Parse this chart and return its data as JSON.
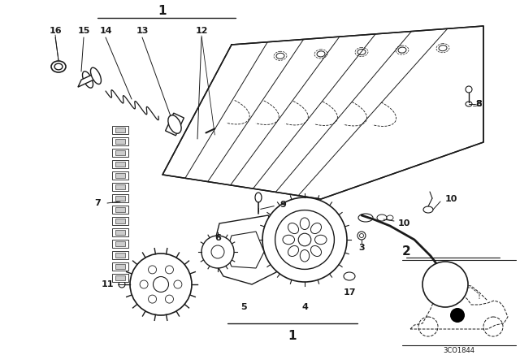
{
  "bg_color": "#ffffff",
  "line_color": "#1a1a1a",
  "text_color": "#1a1a1a",
  "diagram_code": "3CO1844",
  "figsize": [
    6.4,
    4.48
  ],
  "dpi": 100
}
